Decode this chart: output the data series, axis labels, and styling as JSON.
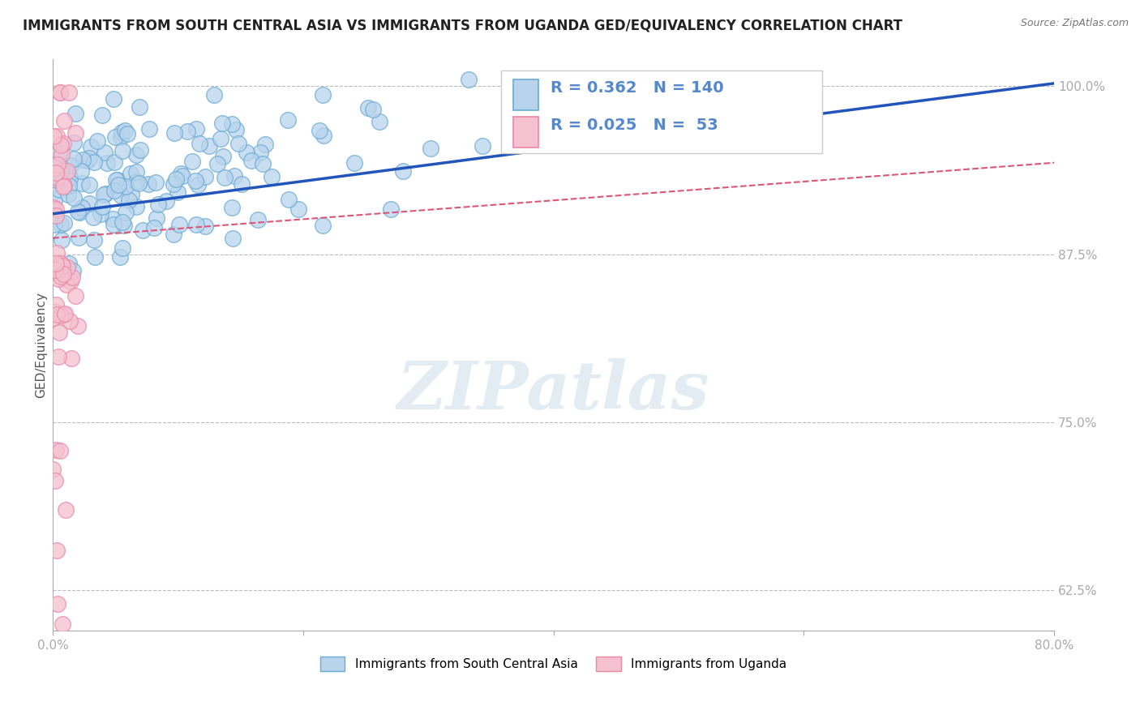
{
  "title": "IMMIGRANTS FROM SOUTH CENTRAL ASIA VS IMMIGRANTS FROM UGANDA GED/EQUIVALENCY CORRELATION CHART",
  "source_text": "Source: ZipAtlas.com",
  "ylabel": "GED/Equivalency",
  "watermark": "ZIPatlas",
  "xlim": [
    0.0,
    0.8
  ],
  "ylim": [
    0.595,
    1.02
  ],
  "yticks": [
    0.625,
    0.75,
    0.875,
    1.0
  ],
  "yticklabels": [
    "62.5%",
    "75.0%",
    "87.5%",
    "100.0%"
  ],
  "blue_R": 0.362,
  "blue_N": 140,
  "pink_R": 0.025,
  "pink_N": 53,
  "blue_color": "#b8d4ec",
  "blue_edge": "#6aaad4",
  "pink_color": "#f5c0d0",
  "pink_edge": "#e888a8",
  "blue_line_color": "#2255bb",
  "pink_line_color": "#dd5577",
  "legend_label_blue": "Immigrants from South Central Asia",
  "legend_label_pink": "Immigrants from Uganda",
  "title_fontsize": 12,
  "axis_label_fontsize": 11,
  "tick_fontsize": 11,
  "grid_color": "#bbbbbb",
  "background_color": "#ffffff",
  "tick_color": "#5588cc"
}
